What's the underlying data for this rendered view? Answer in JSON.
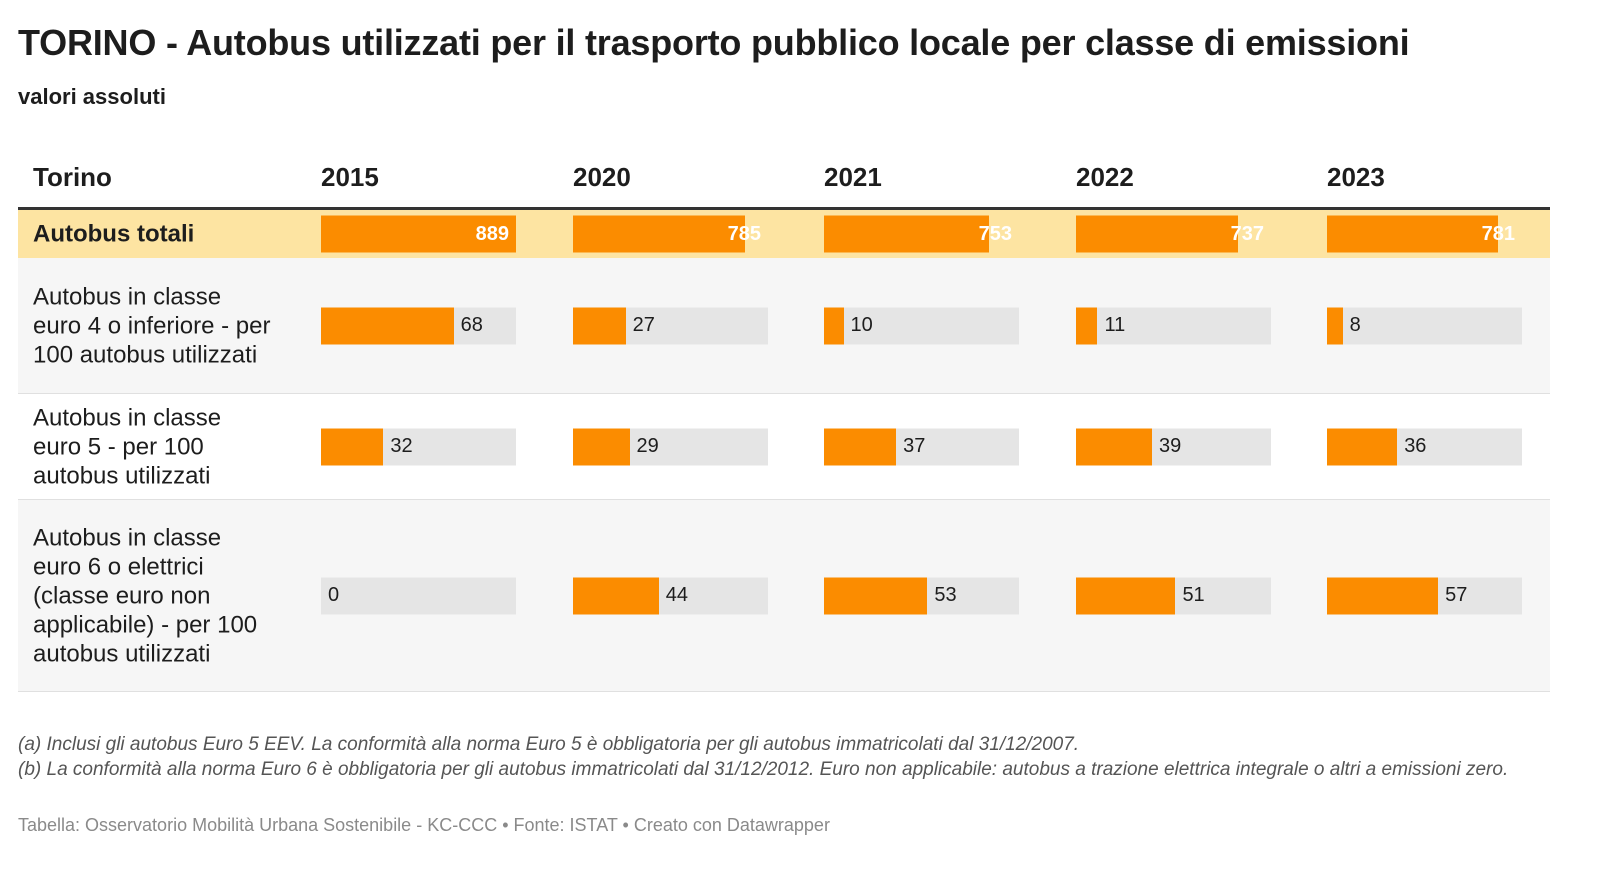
{
  "title": "TORINO - Autobus utilizzati per il trasporto pubblico locale per classe di emissioni",
  "subtitle": "valori assoluti",
  "colors": {
    "bar": "#fb8c00",
    "highlight_row": "#fde4a2",
    "bar_track": "#e5e5e5"
  },
  "chart_data": {
    "type": "table",
    "title": "TORINO - Autobus utilizzati per il trasporto pubblico locale per classe di emissioni",
    "subtitle": "valori assoluti",
    "row_header": "Torino",
    "columns": [
      "2015",
      "2020",
      "2021",
      "2022",
      "2023"
    ],
    "rows": [
      {
        "label": "Autobus totali",
        "highlight": true,
        "max": 889,
        "values": [
          889,
          785,
          753,
          737,
          781
        ]
      },
      {
        "label": "Autobus in classe euro 4 o inferiore - per 100 autobus utilizzati",
        "highlight": false,
        "max": 100,
        "values": [
          68,
          27,
          10,
          11,
          8
        ]
      },
      {
        "label": "Autobus in classe euro 5 - per 100 autobus utilizzati",
        "highlight": false,
        "max": 100,
        "values": [
          32,
          29,
          37,
          39,
          36
        ]
      },
      {
        "label": "Autobus in classe euro 6 o elettrici (classe euro non applicabile) - per 100 autobus utilizzati",
        "highlight": false,
        "max": 100,
        "values": [
          0,
          44,
          53,
          51,
          57
        ]
      }
    ]
  },
  "notes": [
    "(a) Inclusi gli autobus Euro 5 EEV. La conformità alla norma Euro 5 è obbligatoria per gli autobus immatricolati dal 31/12/2007.",
    "(b) La conformità alla norma Euro 6 è obbligatoria per gli autobus immatricolati dal 31/12/2012. Euro non applicabile: autobus a trazione elettrica integrale o altri a emissioni zero."
  ],
  "credits": "Tabella: Osservatorio Mobilità Urbana Sostenibile - KC-CCC • Fonte: ISTAT • Creato con Datawrapper"
}
